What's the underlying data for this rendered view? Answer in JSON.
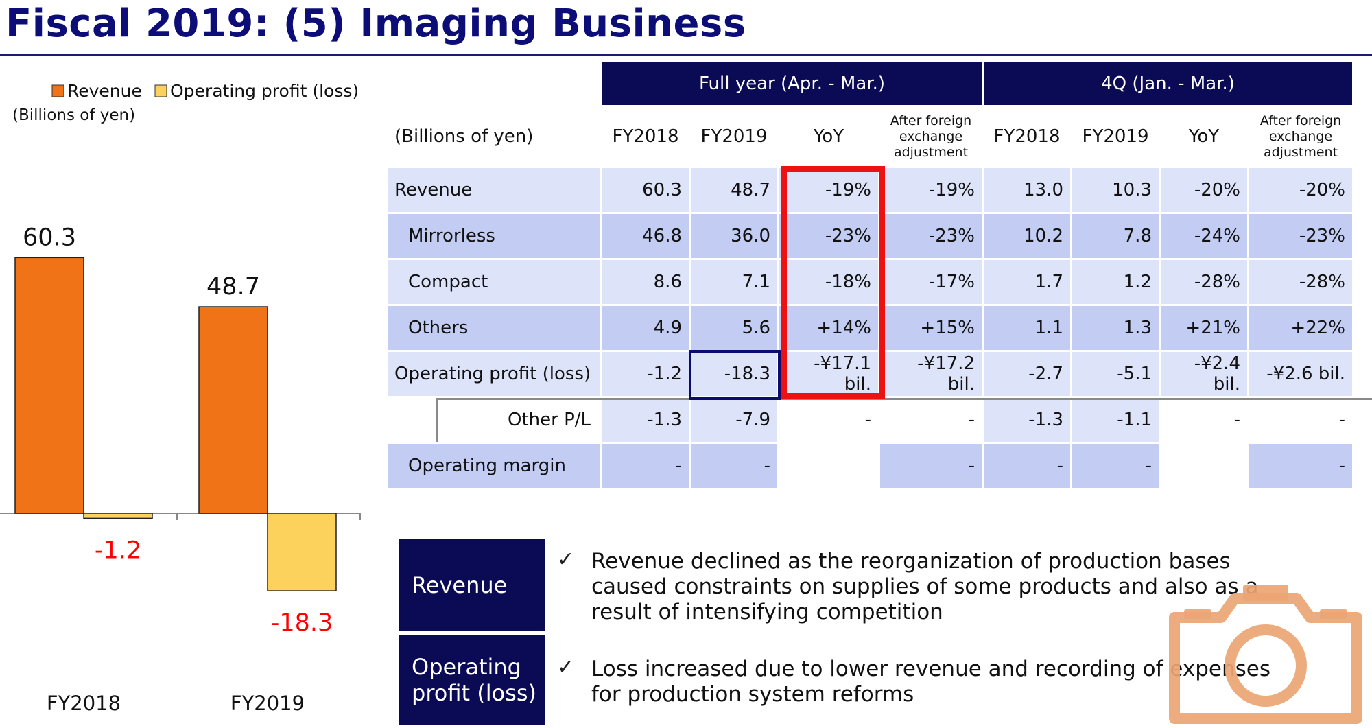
{
  "page": {
    "title": "Fiscal 2019: (5) Imaging Business"
  },
  "chart_data": {
    "type": "bar",
    "categories": [
      "FY2018",
      "FY2019"
    ],
    "series": [
      {
        "name": "Revenue",
        "values": [
          60.3,
          48.7
        ],
        "color": "#f07417"
      },
      {
        "name": "Operating profit (loss)",
        "values": [
          -1.2,
          -18.3
        ],
        "color": "#fdd25c"
      }
    ],
    "unit_label": "(Billions of yen)",
    "data_labels": [
      "60.3",
      "48.7",
      "-1.2",
      "-18.3"
    ],
    "negative_label_color": "#ff0000",
    "legend_position": "top",
    "grid": false,
    "ylim": [
      -22,
      65
    ]
  },
  "table": {
    "group_headers": [
      "Full year (Apr. - Mar.)",
      "4Q (Jan. - Mar.)"
    ],
    "unit_label": "(Billions of yen)",
    "columns": [
      "FY2018",
      "FY2019",
      "YoY",
      "After foreign exchange adjustment",
      "FY2018",
      "FY2019",
      "YoY",
      "After foreign exchange adjustment"
    ],
    "rows": [
      {
        "label": "Revenue",
        "values": [
          "60.3",
          "48.7",
          "-19%",
          "-19%",
          "13.0",
          "10.3",
          "-20%",
          "-20%"
        ]
      },
      {
        "label": "Mirrorless",
        "values": [
          "46.8",
          "36.0",
          "-23%",
          "-23%",
          "10.2",
          "7.8",
          "-24%",
          "-23%"
        ]
      },
      {
        "label": "Compact",
        "values": [
          "8.6",
          "7.1",
          "-18%",
          "-17%",
          "1.7",
          "1.2",
          "-28%",
          "-28%"
        ]
      },
      {
        "label": "Others",
        "values": [
          "4.9",
          "5.6",
          "+14%",
          "+15%",
          "1.1",
          "1.3",
          "+21%",
          "+22%"
        ]
      },
      {
        "label": "Operating profit (loss)",
        "values": [
          "-1.2",
          "-18.3",
          "-¥17.1 bil.",
          "-¥17.2 bil.",
          "-2.7",
          "-5.1",
          "-¥2.4 bil.",
          "-¥2.6 bil."
        ]
      },
      {
        "label": "Other P/L",
        "values": [
          "-1.3",
          "-7.9",
          "-",
          "-",
          "-1.3",
          "-1.1",
          "-",
          "-"
        ]
      },
      {
        "label": "Operating margin",
        "values": [
          "-",
          "-",
          "",
          "-",
          "-",
          "-",
          "",
          "-"
        ]
      }
    ]
  },
  "summary": [
    {
      "label": "Revenue",
      "text": "Revenue declined as the reorganization of production bases caused constraints on supplies of some products and also as a result of intensifying competition"
    },
    {
      "label": "Operating profit (loss)",
      "text": "Loss increased due to lower revenue and recording of expenses for production system reforms"
    }
  ],
  "check_mark": "✓",
  "decoration": {
    "icon": "camera-icon",
    "color": "#eba574"
  }
}
